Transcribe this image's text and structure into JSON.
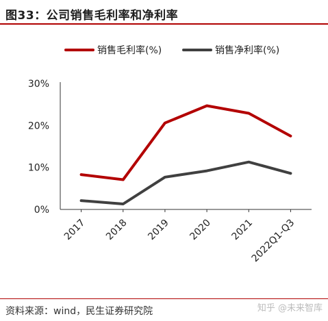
{
  "figure": {
    "title": "图33：公司销售毛利率和净利率",
    "source": "资料来源：wind，民生证券研究院",
    "watermark": "知乎 @未来智库"
  },
  "chart_data": {
    "type": "line",
    "categories": [
      "2017",
      "2018",
      "2019",
      "2020",
      "2021",
      "2022Q1-Q3"
    ],
    "series": [
      {
        "name": "销售毛利率(%)",
        "color": "#b30000",
        "values": [
          8.3,
          7.1,
          20.6,
          24.7,
          22.9,
          17.5
        ]
      },
      {
        "name": "销售净利率(%)",
        "color": "#404040",
        "values": [
          2.1,
          1.3,
          7.7,
          9.2,
          11.3,
          8.6
        ]
      }
    ],
    "yticks": [
      "0%",
      "10%",
      "20%",
      "30%"
    ],
    "ylim": [
      0,
      30
    ],
    "legend_position": "top",
    "grid": false
  }
}
